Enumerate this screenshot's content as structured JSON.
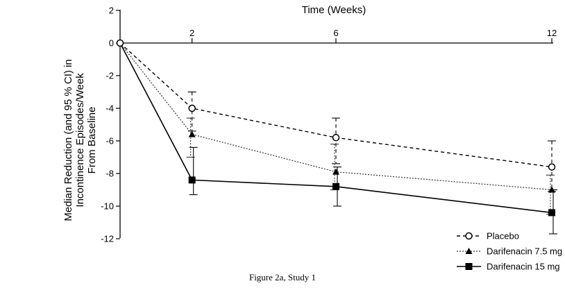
{
  "chart_data": {
    "type": "line",
    "title": "",
    "xlabel": "Time (Weeks)",
    "ylabel": [
      "Median Reduction (and 95 % CI) in",
      "Incontinence Episodes/Week",
      "From Baseline"
    ],
    "xlim": [
      0,
      12
    ],
    "ylim": [
      -12,
      2
    ],
    "x_ticks": [
      2,
      6,
      12
    ],
    "y_ticks": [
      2,
      0,
      -2,
      -4,
      -6,
      -8,
      -10,
      -12
    ],
    "grid": false,
    "legend_position": "bottom-right",
    "x": [
      0,
      2,
      6,
      12
    ],
    "series": [
      {
        "name": "Placebo",
        "line_style": "dashed",
        "marker": "open-circle",
        "values": [
          0,
          -4.0,
          -5.8,
          -7.6
        ],
        "ci_low": [
          0,
          -5.4,
          -7.4,
          -9.1
        ],
        "ci_high": [
          0,
          -3.0,
          -4.6,
          -6.0
        ]
      },
      {
        "name": "Darifenacin 7.5 mg",
        "line_style": "dotted",
        "marker": "filled-triangle",
        "values": [
          0,
          -5.6,
          -7.9,
          -9.0
        ],
        "ci_low": [
          0,
          -7.0,
          -9.0,
          -10.5
        ],
        "ci_high": [
          0,
          -4.6,
          -6.2,
          -8.1
        ]
      },
      {
        "name": "Darifenacin 15 mg",
        "line_style": "solid",
        "marker": "filled-square",
        "values": [
          0,
          -8.4,
          -8.8,
          -10.4
        ],
        "ci_low": [
          0,
          -9.3,
          -10.0,
          -11.7
        ],
        "ci_high": [
          0,
          -6.4,
          -7.6,
          -9.0
        ]
      }
    ]
  },
  "caption": "Figure 2a, Study 1"
}
